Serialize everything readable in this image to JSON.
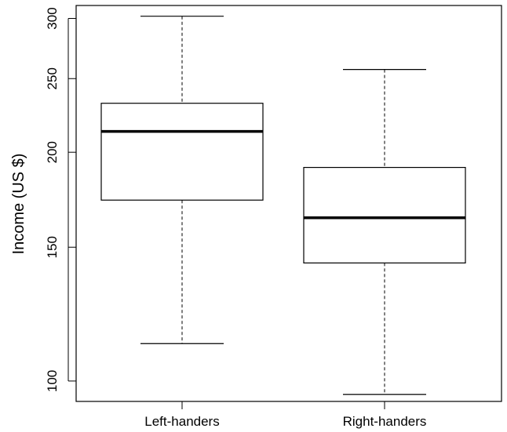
{
  "chart_data": {
    "type": "box",
    "ylabel": "Income (US $)",
    "yscale": "log",
    "yticks": [
      100,
      150,
      200,
      250,
      300
    ],
    "ylim": [
      94,
      312
    ],
    "grid": false,
    "categories": [
      "Left-handers",
      "Right-handers"
    ],
    "boxes": [
      {
        "category": "Left-handers",
        "min": 112,
        "q1": 173,
        "median": 213,
        "q3": 232,
        "max": 302
      },
      {
        "category": "Right-handers",
        "min": 96,
        "q1": 143,
        "median": 164,
        "q3": 191,
        "max": 257
      }
    ]
  }
}
